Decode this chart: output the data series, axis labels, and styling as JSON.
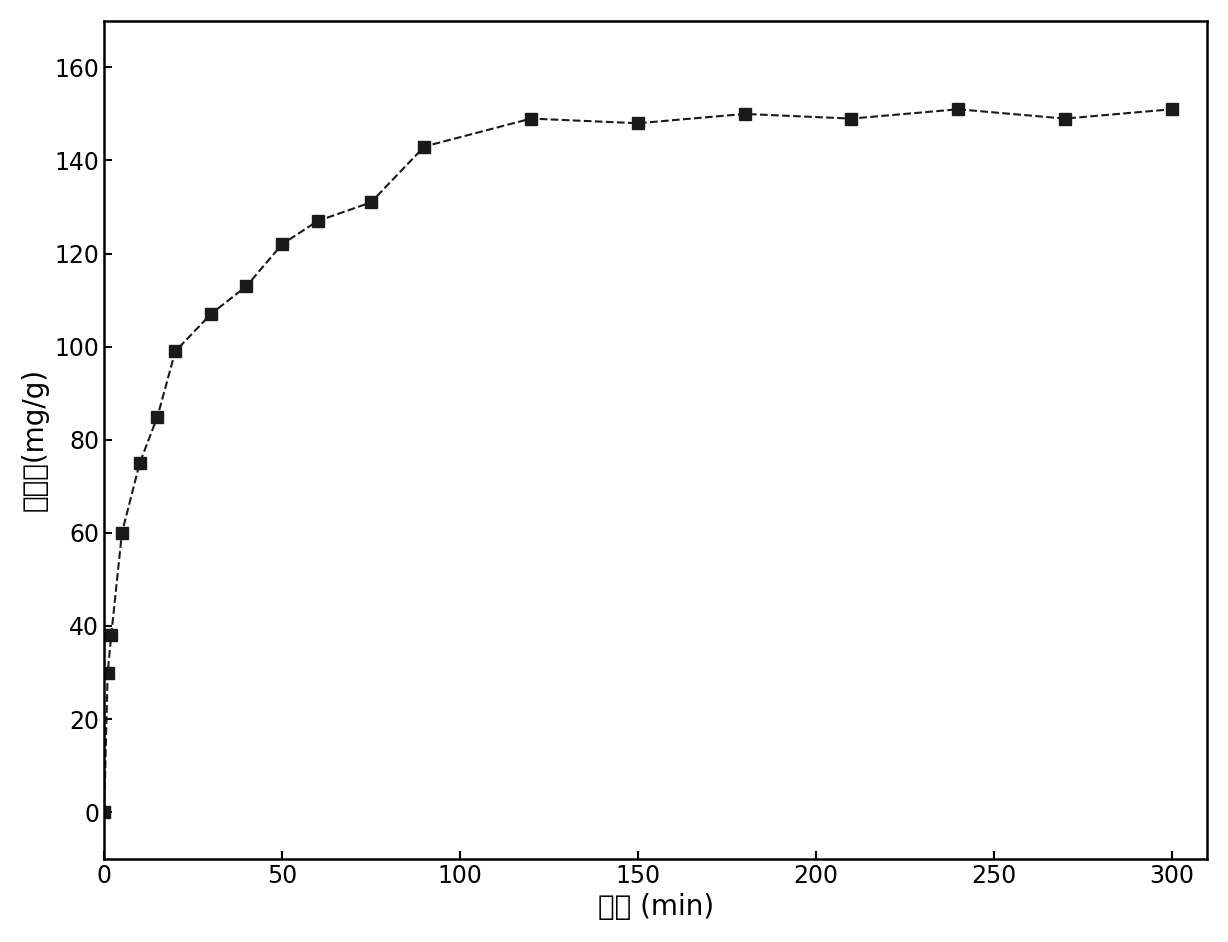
{
  "x": [
    0,
    1,
    2,
    5,
    10,
    15,
    20,
    30,
    40,
    50,
    60,
    75,
    90,
    120,
    150,
    180,
    210,
    240,
    270,
    300
  ],
  "y": [
    0,
    30,
    38,
    60,
    75,
    85,
    99,
    107,
    113,
    122,
    127,
    131,
    143,
    149,
    148,
    150,
    149,
    151,
    149,
    151
  ],
  "xlabel": "时间 (min)",
  "ylabel": "吸附量(mg/g)",
  "xlim": [
    0,
    310
  ],
  "ylim": [
    -10,
    170
  ],
  "xticks": [
    0,
    50,
    100,
    150,
    200,
    250,
    300
  ],
  "yticks": [
    0,
    20,
    40,
    60,
    80,
    100,
    120,
    140,
    160
  ],
  "marker": "s",
  "marker_color": "#1a1a1a",
  "line_color": "#1a1a1a",
  "line_style": "--",
  "marker_size": 9,
  "background_color": "#ffffff",
  "label_fontsize": 20,
  "tick_fontsize": 17
}
